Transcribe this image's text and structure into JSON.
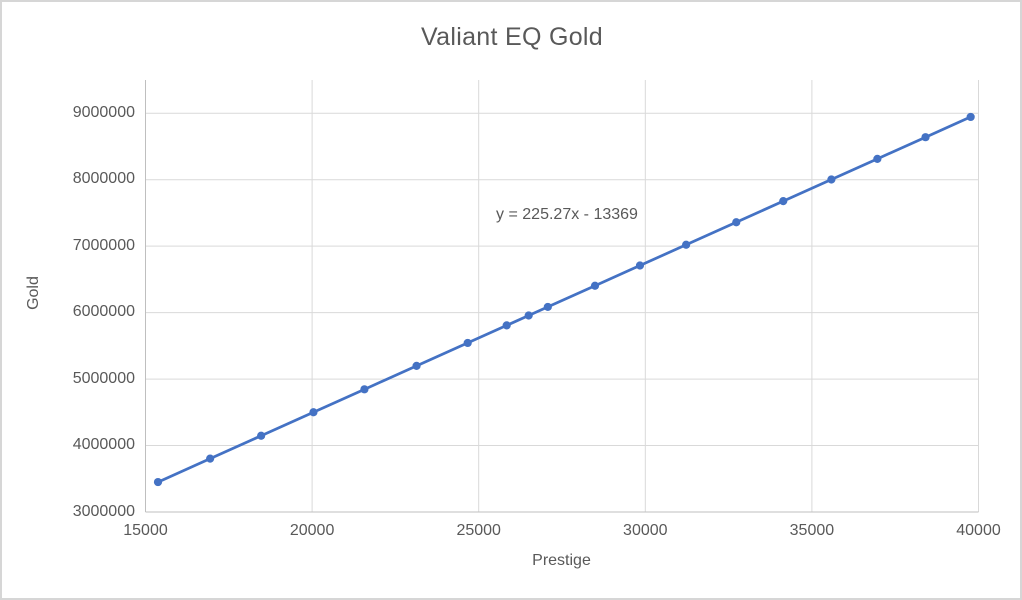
{
  "chart": {
    "title": "Valiant EQ Gold",
    "x_axis_title": "Prestige",
    "y_axis_title": "Gold",
    "equation_label": "y = 225.27x - 13369"
  },
  "colors": {
    "series": "#4472C4",
    "gridline": "#D9D9D9",
    "axis_line": "#BFBFBF",
    "text": "#595959",
    "background": "#FFFFFF",
    "border": "#D6D6D6"
  },
  "chart_data": {
    "type": "scatter",
    "title": "Valiant EQ Gold",
    "xlabel": "Prestige",
    "ylabel": "Gold",
    "xlim": [
      15000,
      40000
    ],
    "ylim": [
      3000000,
      9500000
    ],
    "x_ticks": [
      15000,
      20000,
      25000,
      30000,
      35000,
      40000
    ],
    "y_ticks": [
      3000000,
      4000000,
      5000000,
      6000000,
      7000000,
      8000000,
      9000000
    ],
    "grid": true,
    "legend": false,
    "marker": "circle",
    "trendline": {
      "equation": "y = 225.27x - 13369",
      "slope": 225.27,
      "intercept": -13369
    },
    "points": [
      {
        "x": 15375,
        "y": 3450200
      },
      {
        "x": 16940,
        "y": 3802700
      },
      {
        "x": 18470,
        "y": 4147400
      },
      {
        "x": 20040,
        "y": 4501000
      },
      {
        "x": 21570,
        "y": 4845700
      },
      {
        "x": 23135,
        "y": 5198300
      },
      {
        "x": 24670,
        "y": 5544000
      },
      {
        "x": 25840,
        "y": 5807600
      },
      {
        "x": 26500,
        "y": 5956300
      },
      {
        "x": 27075,
        "y": 6085800
      },
      {
        "x": 28490,
        "y": 6404600
      },
      {
        "x": 29840,
        "y": 6708700
      },
      {
        "x": 31225,
        "y": 7020700
      },
      {
        "x": 32730,
        "y": 7359700
      },
      {
        "x": 34140,
        "y": 7677300
      },
      {
        "x": 35585,
        "y": 8002900
      },
      {
        "x": 36965,
        "y": 8313700
      },
      {
        "x": 38410,
        "y": 8639300
      },
      {
        "x": 39765,
        "y": 8944500
      }
    ]
  }
}
